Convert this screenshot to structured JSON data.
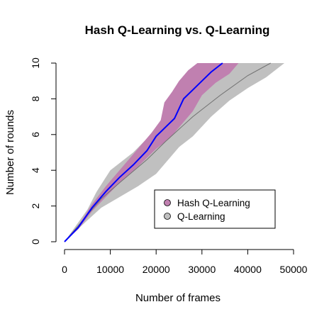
{
  "chart_data": {
    "type": "area",
    "title": "Hash Q-Learning vs. Q-Learning",
    "xlabel": "Number of frames",
    "ylabel": "Number of rounds",
    "xlim": [
      0,
      50000
    ],
    "ylim": [
      0,
      10
    ],
    "xticks": [
      0,
      10000,
      20000,
      30000,
      40000,
      50000
    ],
    "yticks": [
      0,
      2,
      4,
      6,
      8,
      10
    ],
    "xtick_labels": [
      "0",
      "10000",
      "20000",
      "30000",
      "40000",
      "50000"
    ],
    "ytick_labels": [
      "0",
      "2",
      "4",
      "6",
      "8",
      "10"
    ],
    "legend_position": "bottom-right",
    "series": [
      {
        "name": "Q-Learning",
        "color": "#c0c0c0",
        "line_color": "#707070",
        "mean": [
          [
            0,
            0
          ],
          [
            5000,
            1.5
          ],
          [
            8000,
            2.4
          ],
          [
            12000,
            3.3
          ],
          [
            18000,
            4.6
          ],
          [
            22000,
            5.6
          ],
          [
            28000,
            7.0
          ],
          [
            34000,
            8.2
          ],
          [
            40000,
            9.3
          ],
          [
            45000,
            10.0
          ]
        ],
        "lower": [
          [
            0,
            0
          ],
          [
            5000,
            1.2
          ],
          [
            8000,
            1.9
          ],
          [
            12000,
            2.5
          ],
          [
            16000,
            3.1
          ],
          [
            20000,
            3.8
          ],
          [
            25000,
            5.3
          ],
          [
            28000,
            5.9
          ],
          [
            32000,
            7.0
          ],
          [
            36000,
            7.9
          ],
          [
            40000,
            8.6
          ],
          [
            44000,
            9.2
          ],
          [
            48000,
            10.0
          ]
        ],
        "upper": [
          [
            0,
            0
          ],
          [
            5000,
            1.8
          ],
          [
            7000,
            2.8
          ],
          [
            10000,
            4.0
          ],
          [
            15000,
            5.0
          ],
          [
            20000,
            6.3
          ],
          [
            23000,
            6.7
          ],
          [
            25000,
            7.5
          ],
          [
            28000,
            8.1
          ],
          [
            30000,
            8.8
          ],
          [
            33000,
            9.5
          ],
          [
            36000,
            10.0
          ]
        ]
      },
      {
        "name": "Hash Q-Learning",
        "color": "#c080b0",
        "line_color": "#0000ff",
        "mean": [
          [
            0,
            0
          ],
          [
            3000,
            0.8
          ],
          [
            6000,
            1.9
          ],
          [
            9000,
            2.8
          ],
          [
            12000,
            3.6
          ],
          [
            15000,
            4.3
          ],
          [
            18000,
            5.1
          ],
          [
            20000,
            5.9
          ],
          [
            22000,
            6.4
          ],
          [
            24000,
            6.9
          ],
          [
            26000,
            8.0
          ],
          [
            28000,
            8.5
          ],
          [
            30000,
            9.0
          ],
          [
            32000,
            9.5
          ],
          [
            34500,
            10.0
          ]
        ],
        "lower": [
          [
            0,
            0
          ],
          [
            3000,
            0.7
          ],
          [
            6000,
            1.7
          ],
          [
            9000,
            2.5
          ],
          [
            12000,
            3.3
          ],
          [
            16000,
            4.2
          ],
          [
            20000,
            5.2
          ],
          [
            23000,
            5.8
          ],
          [
            26000,
            6.7
          ],
          [
            28000,
            7.3
          ],
          [
            30000,
            8.2
          ],
          [
            33000,
            8.9
          ],
          [
            36000,
            9.4
          ],
          [
            38000,
            10.0
          ]
        ],
        "upper": [
          [
            0,
            0
          ],
          [
            3000,
            0.9
          ],
          [
            6000,
            2.1
          ],
          [
            9000,
            3.1
          ],
          [
            12000,
            4.0
          ],
          [
            16000,
            5.2
          ],
          [
            19000,
            6.1
          ],
          [
            21000,
            6.8
          ],
          [
            21800,
            7.8
          ],
          [
            23500,
            8.4
          ],
          [
            25000,
            9.0
          ],
          [
            27000,
            9.6
          ],
          [
            29000,
            10.0
          ]
        ]
      }
    ],
    "legend": [
      {
        "label": "Hash Q-Learning",
        "color": "#c080b0"
      },
      {
        "label": "Q-Learning",
        "color": "#c0c0c0"
      }
    ]
  }
}
